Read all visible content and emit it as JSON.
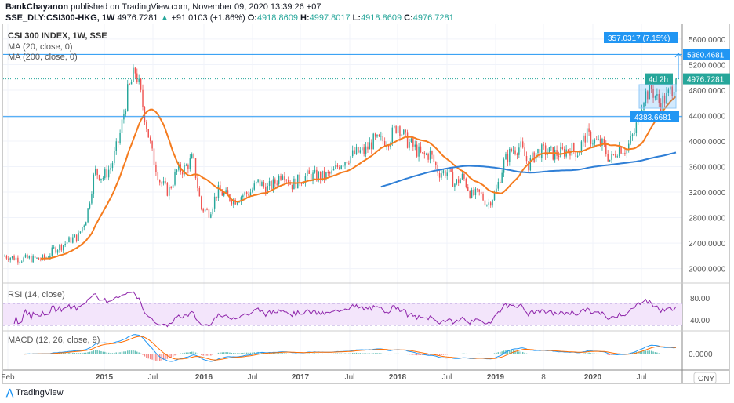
{
  "header": {
    "author": "BankChayanon",
    "published": "published on TradingView.com, November 09, 2020 13:39:26 +07",
    "symbol": "SSE_DLY:CSI300-HKG, 1W",
    "last": "4976.7281",
    "change": "+91.0103 (+1.86%)",
    "o_label": "O:",
    "o": "4918.8609",
    "h_label": "H:",
    "h": "4997.8017",
    "l_label": "L:",
    "l": "4918.8609",
    "c_label": "C:",
    "c": "4976.7281"
  },
  "legend": {
    "title": "CSI 300 INDEX, 1W, SSE",
    "ma20": "MA (20, close, 0)",
    "ma200": "MA (200, close, 0)",
    "rsi": "RSI (14, close)",
    "macd": "MACD (12, 26, close, 9)"
  },
  "axis": {
    "currency": "CNY",
    "measure": "357.0317 (7.15%)",
    "resistance": "5360.4681",
    "last": "4976.7281",
    "support": "4383.6681",
    "countdown": "4d 2h",
    "price_ticks": [
      "5600.0000",
      "5200.0000",
      "4800.0000",
      "4400.0000",
      "4000.0000",
      "3600.0000",
      "3200.0000",
      "2800.0000",
      "2400.0000",
      "2000.0000"
    ],
    "rsi_ticks": [
      "80.00",
      "40.00"
    ],
    "macd_ticks": [
      "0.0000"
    ],
    "time_ticks": [
      "Feb",
      "2015",
      "Jul",
      "2016",
      "Jul",
      "2017",
      "Jul",
      "2018",
      "Jul",
      "2019",
      "8",
      "2020",
      "Jul"
    ]
  },
  "footer": {
    "brand": "TradingView"
  },
  "colors": {
    "up": "#26a69a",
    "down": "#ef5350",
    "ma20": "#f57c1f",
    "ma200": "#2f7fd6",
    "rsi": "#8e24aa",
    "macd": "#2196f3",
    "signal": "#ff6d00",
    "level": "#2196f3"
  },
  "chart_data": {
    "type": "line",
    "title": "CSI 300 INDEX, 1W, SSE",
    "xlabel": "",
    "ylabel": "CNY",
    "ylim": [
      1900,
      5650
    ],
    "monthly_close_from": "2014-01",
    "monthly_close": [
      2200,
      2170,
      2150,
      2160,
      2150,
      2160,
      2300,
      2360,
      2450,
      2510,
      2810,
      3530,
      3430,
      3600,
      4050,
      4750,
      5120,
      4470,
      3800,
      3360,
      3200,
      3530,
      3570,
      3730,
      2950,
      2880,
      3220,
      3150,
      3070,
      3150,
      3200,
      3360,
      3250,
      3340,
      3540,
      3310,
      3390,
      3450,
      3450,
      3440,
      3490,
      3660,
      3740,
      3820,
      3840,
      4000,
      4000,
      4030,
      4270,
      4020,
      3900,
      3760,
      3800,
      3510,
      3520,
      3330,
      3440,
      3150,
      3170,
      3010,
      3200,
      3670,
      3870,
      3910,
      3630,
      3830,
      3840,
      3800,
      3810,
      3890,
      3830,
      4100,
      4000,
      3940,
      3690,
      3910,
      3870,
      4160,
      4700,
      4820,
      4590,
      4700,
      4976.7281
    ],
    "levels": [
      5360.4681,
      4383.6681
    ],
    "rsi_range": [
      20,
      100
    ],
    "rsi_band": [
      30,
      70
    ]
  }
}
